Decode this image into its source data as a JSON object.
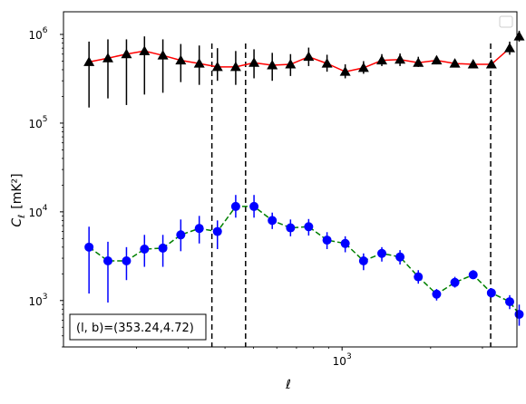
{
  "chart_data": {
    "type": "scatter",
    "title": "",
    "xlabel": "ℓ",
    "ylabel_main": "C",
    "ylabel_sub": "ℓ",
    "ylabel_unit": "[mK²]",
    "xscale": "log",
    "yscale": "log",
    "xlim": [
      113,
      3930
    ],
    "ylim": [
      300,
      1800000
    ],
    "x_ticks": [
      {
        "value": 1000,
        "base": "10",
        "exp": "3"
      }
    ],
    "y_ticks": [
      {
        "value": 1000,
        "base": "10",
        "exp": "3"
      },
      {
        "value": 10000,
        "base": "10",
        "exp": "4"
      },
      {
        "value": 100000,
        "base": "10",
        "exp": "5"
      },
      {
        "value": 1000000,
        "base": "10",
        "exp": "6"
      }
    ],
    "vlines": [
      361,
      470,
      3200
    ],
    "annotation": "(l, b)=(353.24,4.72)",
    "legend": "upper right, empty",
    "series": [
      {
        "marker": "triangle",
        "marker_color": "#000000",
        "errbar_color": "#000000",
        "line_color": "#ff0000",
        "line_style": "solid",
        "x": [
          138,
          160,
          185,
          213,
          246,
          283,
          327,
          377,
          435,
          502,
          579,
          668,
          770,
          889,
          1025,
          1183,
          1365,
          1574,
          1816,
          2096,
          2418,
          2790,
          3218,
          3713
        ],
        "y": [
          490000,
          540000,
          600000,
          650000,
          580000,
          510000,
          470000,
          430000,
          430000,
          480000,
          450000,
          460000,
          560000,
          470000,
          380000,
          420000,
          510000,
          520000,
          480000,
          510000,
          470000,
          460000,
          460000,
          700000
        ],
        "yerr_low": [
          150000,
          190000,
          160000,
          210000,
          220000,
          290000,
          270000,
          300000,
          270000,
          320000,
          300000,
          340000,
          440000,
          380000,
          320000,
          360000,
          440000,
          440000,
          430000,
          460000,
          440000,
          430000,
          430000,
          590000
        ],
        "yerr_high": [
          830000,
          880000,
          880000,
          950000,
          880000,
          780000,
          750000,
          700000,
          650000,
          680000,
          620000,
          600000,
          710000,
          590000,
          460000,
          500000,
          600000,
          610000,
          560000,
          570000,
          500000,
          490000,
          500000,
          830000
        ]
      },
      {
        "marker": "triangle",
        "marker_color": "#000000",
        "errbar_color": "#000000",
        "line_color": "#ff0000",
        "line_style": "solid",
        "x": [
          4000
        ],
        "y": [
          950000
        ],
        "yerr_low": [
          830000
        ],
        "yerr_high": [
          1100000
        ]
      },
      {
        "marker": "circle",
        "marker_color": "#0000ff",
        "errbar_color": "#0000ff",
        "line_color": "#008000",
        "line_style": "dashed",
        "x": [
          138,
          160,
          185,
          213,
          246,
          283,
          327,
          377,
          435,
          502,
          579,
          668,
          770,
          889,
          1025,
          1183,
          1365,
          1574,
          1816,
          2096,
          2418,
          2790,
          3218,
          3713,
          4000
        ],
        "y": [
          4000,
          2800,
          2800,
          3800,
          3900,
          5500,
          6500,
          6000,
          11500,
          11500,
          8000,
          6600,
          6800,
          4800,
          4400,
          2800,
          3400,
          3100,
          1850,
          1180,
          1600,
          1950,
          1220,
          970,
          700
        ],
        "yerr_low": [
          1200,
          950,
          1700,
          2400,
          2400,
          3600,
          4400,
          3800,
          8600,
          8600,
          6400,
          5300,
          5400,
          3800,
          3500,
          2200,
          2750,
          2550,
          1550,
          1000,
          1400,
          1750,
          1080,
          800,
          520
        ],
        "yerr_high": [
          6800,
          4600,
          4000,
          5500,
          5500,
          8200,
          9000,
          8000,
          15500,
          15500,
          9800,
          8200,
          8300,
          5900,
          5300,
          3400,
          4000,
          3700,
          2200,
          1350,
          1850,
          2200,
          1380,
          1150,
          900
        ]
      }
    ]
  }
}
